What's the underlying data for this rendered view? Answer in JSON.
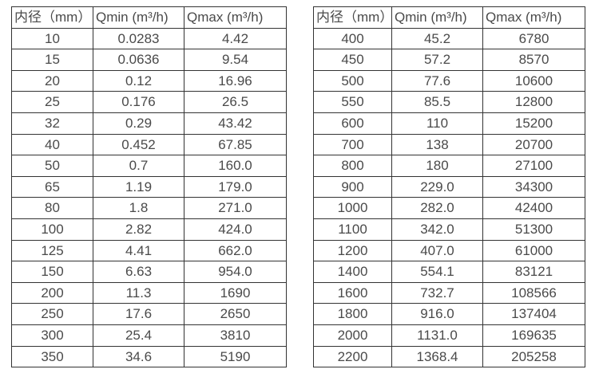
{
  "page": {
    "background_color": "#ffffff",
    "border_color": "#333333",
    "text_color": "#4a4a4a"
  },
  "tables": [
    {
      "name": "small-diameter-flow-table",
      "headers": [
        "内径（mm）",
        "Qmin (m³/h)",
        "Qmax (m³/h)"
      ],
      "rows": [
        [
          "10",
          "0.0283",
          "4.42"
        ],
        [
          "15",
          "0.0636",
          "9.54"
        ],
        [
          "20",
          "0.12",
          "16.96"
        ],
        [
          "25",
          "0.176",
          "26.5"
        ],
        [
          "32",
          "0.29",
          "43.42"
        ],
        [
          "40",
          "0.452",
          "67.85"
        ],
        [
          "50",
          "0.7",
          "160.0"
        ],
        [
          "65",
          "1.19",
          "179.0"
        ],
        [
          "80",
          "1.8",
          "271.0"
        ],
        [
          "100",
          "2.82",
          "424.0"
        ],
        [
          "125",
          "4.41",
          "662.0"
        ],
        [
          "150",
          "6.63",
          "954.0"
        ],
        [
          "200",
          "11.3",
          "1690"
        ],
        [
          "250",
          "17.6",
          "2650"
        ],
        [
          "300",
          "25.4",
          "3810"
        ],
        [
          "350",
          "34.6",
          "5190"
        ]
      ]
    },
    {
      "name": "large-diameter-flow-table",
      "headers": [
        "内径（mm）",
        "Qmin (m³/h)",
        "Qmax (m³/h)"
      ],
      "rows": [
        [
          "400",
          "45.2",
          "6780"
        ],
        [
          "450",
          "57.2",
          "8570"
        ],
        [
          "500",
          "77.6",
          "10600"
        ],
        [
          "550",
          "85.5",
          "12800"
        ],
        [
          "600",
          "110",
          "15200"
        ],
        [
          "700",
          "138",
          "20700"
        ],
        [
          "800",
          "180",
          "27100"
        ],
        [
          "900",
          "229.0",
          "34300"
        ],
        [
          "1000",
          "282.0",
          "42400"
        ],
        [
          "1100",
          "342.0",
          "51300"
        ],
        [
          "1200",
          "407.0",
          "61000"
        ],
        [
          "1400",
          "554.1",
          "83121"
        ],
        [
          "1600",
          "732.7",
          "108566"
        ],
        [
          "1800",
          "916.0",
          "137404"
        ],
        [
          "2000",
          "1131.0",
          "169635"
        ],
        [
          "2200",
          "1368.4",
          "205258"
        ]
      ]
    }
  ]
}
